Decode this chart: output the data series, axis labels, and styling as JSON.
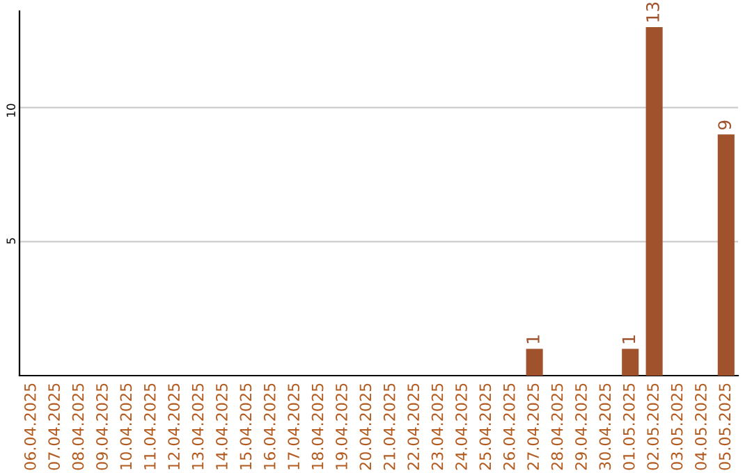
{
  "chart_data": {
    "type": "bar",
    "categories": [
      "06.04.2025",
      "07.04.2025",
      "08.04.2025",
      "09.04.2025",
      "10.04.2025",
      "11.04.2025",
      "12.04.2025",
      "13.04.2025",
      "14.04.2025",
      "15.04.2025",
      "16.04.2025",
      "17.04.2025",
      "18.04.2025",
      "19.04.2025",
      "20.04.2025",
      "21.04.2025",
      "22.04.2025",
      "23.04.2025",
      "24.04.2025",
      "25.04.2025",
      "26.04.2025",
      "27.04.2025",
      "28.04.2025",
      "29.04.2025",
      "30.04.2025",
      "01.05.2025",
      "02.05.2025",
      "03.05.2025",
      "04.05.2025",
      "05.05.2025"
    ],
    "values": [
      0,
      0,
      0,
      0,
      0,
      0,
      0,
      0,
      0,
      0,
      0,
      0,
      0,
      0,
      0,
      0,
      0,
      0,
      0,
      0,
      0,
      1,
      0,
      0,
      0,
      1,
      13,
      0,
      0,
      9
    ],
    "value_labels": [
      null,
      null,
      null,
      null,
      null,
      null,
      null,
      null,
      null,
      null,
      null,
      null,
      null,
      null,
      null,
      null,
      null,
      null,
      null,
      null,
      null,
      "1",
      null,
      null,
      null,
      "1",
      "13",
      null,
      null,
      "9"
    ],
    "color": "#a0522d",
    "ylim": [
      0,
      13.6
    ],
    "yticks": [
      5,
      10
    ],
    "grid": "y"
  }
}
